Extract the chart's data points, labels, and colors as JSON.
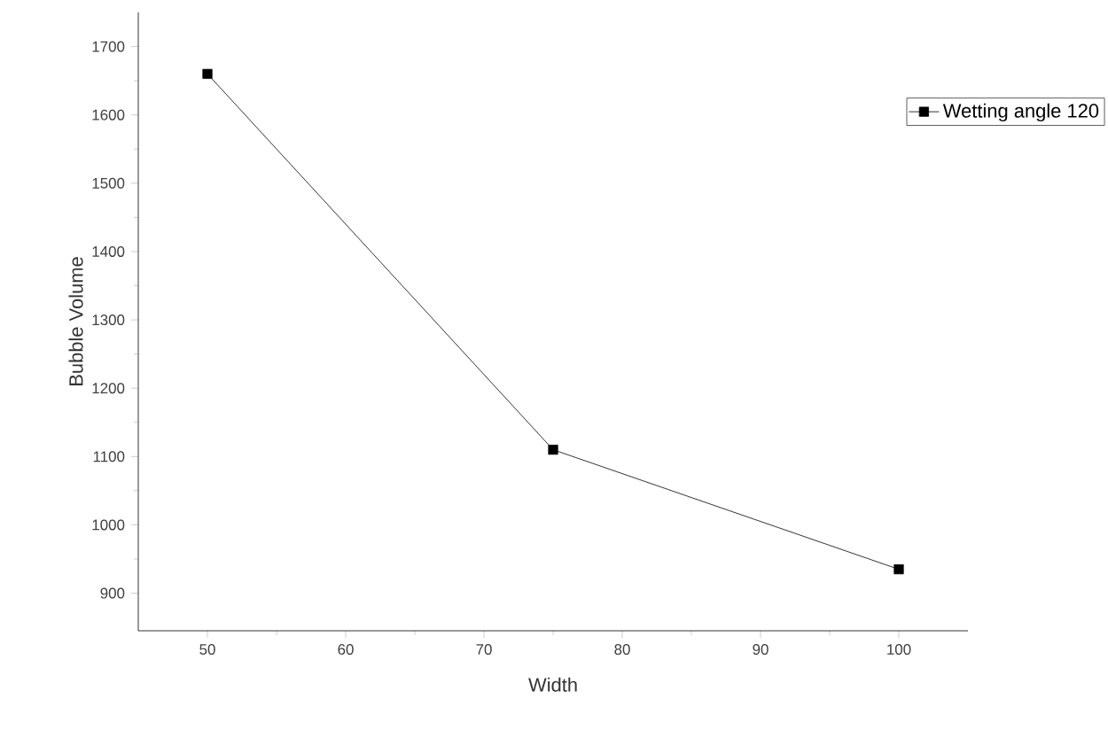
{
  "chart_data": {
    "type": "line",
    "xlabel": "Width",
    "ylabel": "Bubble Volume",
    "x": [
      50,
      75,
      100
    ],
    "series": [
      {
        "name": "Wetting angle 120",
        "color": "#000000",
        "values": [
          1660,
          1110,
          935
        ]
      }
    ],
    "xlim": [
      45,
      105
    ],
    "ylim": [
      845,
      1750
    ],
    "xticks": [
      50,
      60,
      70,
      80,
      90,
      100
    ],
    "yticks": [
      900,
      1000,
      1100,
      1200,
      1300,
      1400,
      1500,
      1600,
      1700
    ],
    "legend": "top right",
    "marker": "square",
    "line_style": "solid",
    "grid": false
  }
}
